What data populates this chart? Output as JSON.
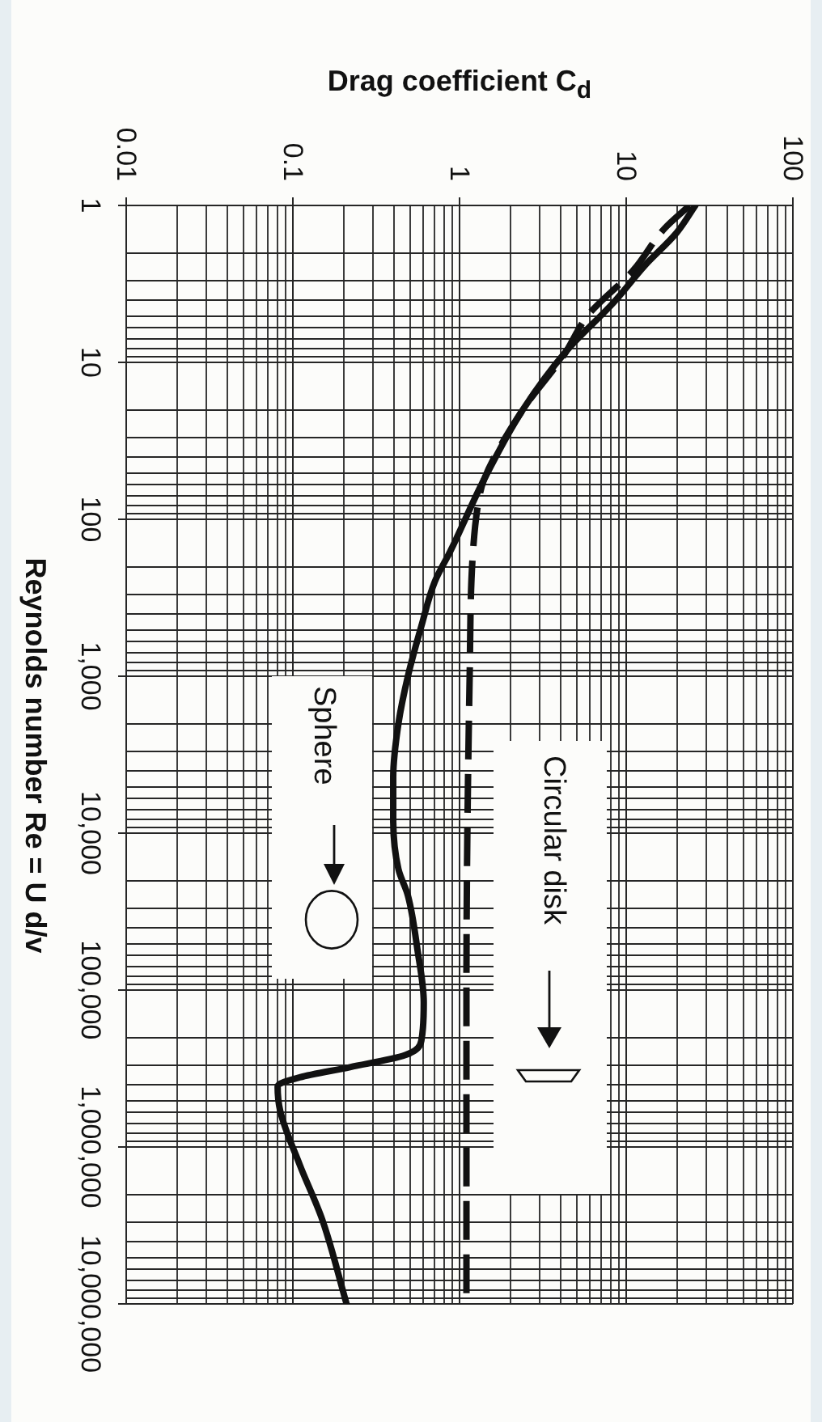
{
  "chart_data": {
    "type": "line",
    "xlabel": "Drag coefficient C$_{d}$",
    "ylabel": "Reynolds number Re = U d/v",
    "xlim": [
      0.01,
      100
    ],
    "xticks": [
      0.01,
      0.1,
      1,
      10,
      100
    ],
    "ylim": [
      10000000,
      1
    ],
    "yticks": [
      1,
      10,
      100,
      {
        "value": 1000,
        "label": "1,000"
      },
      {
        "value": 10000,
        "label": "10,000"
      },
      {
        "value": 100000,
        "label": "100,000"
      },
      {
        "value": 1000000,
        "label": "1,000,000"
      },
      {
        "value": 10000000,
        "label": "10,000,000"
      }
    ],
    "log": "xy",
    "grid": true,
    "series": [
      {
        "name": "Sphere",
        "color": "#111111",
        "line_style": "solid",
        "x": [
          26,
          20,
          13,
          8.5,
          4.4,
          2.4,
          1.4,
          0.88,
          0.71,
          0.59,
          0.49,
          0.43,
          0.4,
          0.4,
          0.43,
          0.49,
          0.56,
          0.61,
          0.59,
          0.47,
          0.22,
          0.11,
          0.081,
          0.084,
          0.11,
          0.15,
          0.21
        ],
        "values": [
          1,
          1.5,
          2.4,
          4.1,
          8.4,
          20,
          56,
          160,
          250,
          480,
          1000,
          2000,
          4400,
          8200,
          17000,
          25000,
          56000,
          120000,
          210000,
          260000,
          310000,
          360000,
          410000,
          590000,
          1300000,
          2900000,
          10000000
        ]
      },
      {
        "name": "Circular disk",
        "color": "#111111",
        "line_style": "dashed",
        "x": [
          24,
          17,
          11,
          5.9,
          4.2,
          2.4,
          1.4,
          1.3,
          1.2,
          1.15,
          1.1,
          1.1
        ],
        "values": [
          1,
          1.4,
          2.6,
          5,
          9.1,
          20,
          56,
          77,
          170,
          1000,
          100000,
          10000000
        ]
      }
    ]
  }
}
